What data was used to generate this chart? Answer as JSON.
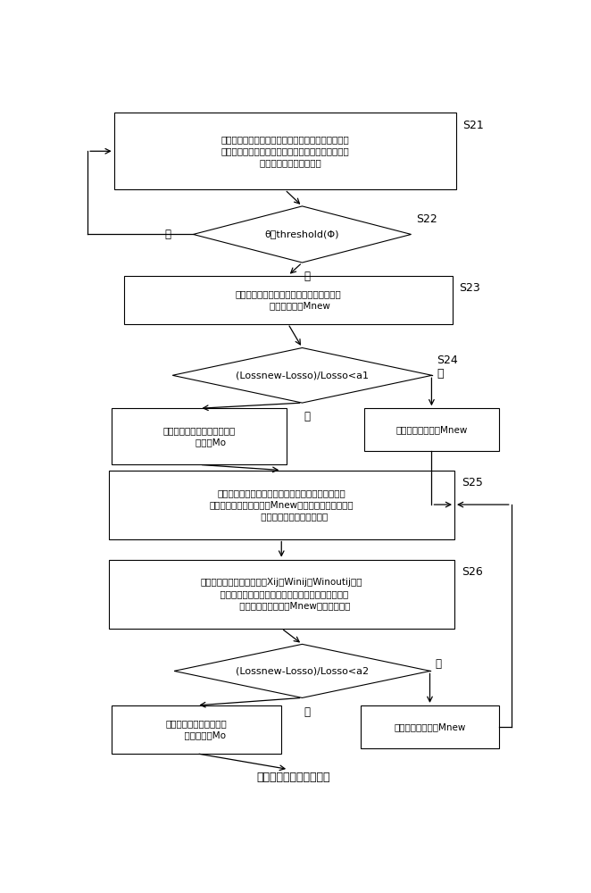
{
  "fig_width": 6.62,
  "fig_height": 10.0,
  "bg_color": "#ffffff",
  "box_edge": "#000000",
  "text_color": "#000000",
  "font_size": 7.8,
  "small_font": 8.0,
  "label_font": 9.0,
  "s21_text": "根据需求设计神经网络结构，并使用数据对神经网络\n模型进行训练，使神经网络模型收敛或者神经网络的\n    迭代次数超过一定的阈值",
  "s22_text": "θ＜threshold(Φ)",
  "s23_text": "将当前层的神经元进行减操作处理，并获得\n        神经网络模型Mnew",
  "s24_text": "(Lossnew-Losso)/Losso<a1",
  "r1_text": "将神经网络模型还原为神经网\n        络模型Mo",
  "a1_text": "接受神经网络模型Mnew",
  "s25_text": "将当前层的神经元进行增操作处理，并将增操作处理\n后的神经网络模型标记为Mnew，在当前层增添一个神\n         经元，并随机进行初始化；",
  "s26_text": "使用数据仅对新增的神经元Xij的Winij和Winoutij进行\n  迭代更新，一定迭代次数或收敛后，再将该增操作处\n         理后的神经网络模型Mnew进行迭代训练",
  "s27_text": "(Lossnew-Losso)/Losso<a2",
  "r2_text": "将神经网络模型还原为神\n      经网络模型Mo",
  "a2_text": "接受神经网络模型Mnew",
  "end_text": "进入下一层增减操作处理"
}
